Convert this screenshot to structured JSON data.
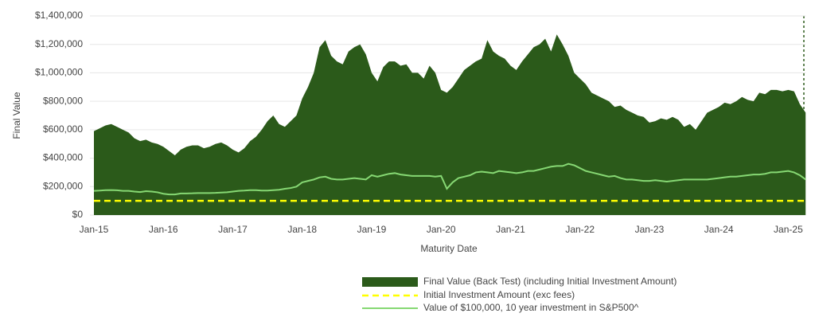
{
  "chart_data": {
    "type": "area",
    "x_label": "Maturity Date",
    "y_label": "Final Value",
    "ylim": [
      0,
      1400000
    ],
    "yticks": [
      {
        "value": 0,
        "label": "$0"
      },
      {
        "value": 200000,
        "label": "$200,000"
      },
      {
        "value": 400000,
        "label": "$400,000"
      },
      {
        "value": 600000,
        "label": "$600,000"
      },
      {
        "value": 800000,
        "label": "$800,000"
      },
      {
        "value": 1000000,
        "label": "$1,000,000"
      },
      {
        "value": 1200000,
        "label": "$1,200,000"
      },
      {
        "value": 1400000,
        "label": "$1,400,000"
      }
    ],
    "grid": true,
    "categories": [
      "Jan-15",
      null,
      null,
      null,
      null,
      null,
      null,
      null,
      null,
      null,
      null,
      null,
      "Jan-16",
      null,
      null,
      null,
      null,
      null,
      null,
      null,
      null,
      null,
      null,
      null,
      "Jan-17",
      null,
      null,
      null,
      null,
      null,
      null,
      null,
      null,
      null,
      null,
      null,
      "Jan-18",
      null,
      null,
      null,
      null,
      null,
      null,
      null,
      null,
      null,
      null,
      null,
      "Jan-19",
      null,
      null,
      null,
      null,
      null,
      null,
      null,
      null,
      null,
      null,
      null,
      "Jan-20",
      null,
      null,
      null,
      null,
      null,
      null,
      null,
      null,
      null,
      null,
      null,
      "Jan-21",
      null,
      null,
      null,
      null,
      null,
      null,
      null,
      null,
      null,
      null,
      null,
      "Jan-22",
      null,
      null,
      null,
      null,
      null,
      null,
      null,
      null,
      null,
      null,
      null,
      "Jan-23",
      null,
      null,
      null,
      null,
      null,
      null,
      null,
      null,
      null,
      null,
      null,
      "Jan-24",
      null,
      null,
      null,
      null,
      null,
      null,
      null,
      null,
      null,
      null,
      null,
      "Jan-25",
      null,
      null,
      null
    ],
    "series": [
      {
        "name": "Final Value (Back Test) (including Initial Investment Amount)",
        "color": "#2b5a1a",
        "style": "area",
        "values": [
          590000,
          610000,
          630000,
          640000,
          620000,
          600000,
          580000,
          540000,
          520000,
          530000,
          510000,
          500000,
          480000,
          450000,
          420000,
          460000,
          480000,
          490000,
          490000,
          470000,
          480000,
          500000,
          510000,
          490000,
          460000,
          440000,
          470000,
          520000,
          550000,
          600000,
          660000,
          700000,
          640000,
          620000,
          660000,
          700000,
          820000,
          900000,
          1000000,
          1180000,
          1230000,
          1120000,
          1080000,
          1060000,
          1150000,
          1180000,
          1200000,
          1130000,
          1000000,
          940000,
          1040000,
          1080000,
          1080000,
          1050000,
          1060000,
          1000000,
          1000000,
          960000,
          1050000,
          1000000,
          880000,
          860000,
          900000,
          960000,
          1020000,
          1050000,
          1080000,
          1100000,
          1230000,
          1150000,
          1120000,
          1100000,
          1050000,
          1020000,
          1080000,
          1130000,
          1180000,
          1200000,
          1240000,
          1150000,
          1270000,
          1200000,
          1120000,
          1000000,
          960000,
          920000,
          860000,
          840000,
          820000,
          800000,
          760000,
          770000,
          740000,
          720000,
          700000,
          690000,
          650000,
          660000,
          680000,
          670000,
          690000,
          670000,
          620000,
          640000,
          600000,
          660000,
          720000,
          740000,
          760000,
          790000,
          780000,
          800000,
          830000,
          810000,
          800000,
          860000,
          850000,
          880000,
          880000,
          870000,
          880000,
          870000,
          780000,
          720000
        ]
      },
      {
        "name": "Initial Investment Amount (exc  fees)",
        "color": "#ffff00",
        "style": "dashed",
        "values": [
          100000,
          100000,
          100000,
          100000,
          100000,
          100000,
          100000,
          100000,
          100000,
          100000,
          100000,
          100000,
          100000,
          100000,
          100000,
          100000,
          100000,
          100000,
          100000,
          100000,
          100000,
          100000,
          100000,
          100000,
          100000,
          100000,
          100000,
          100000,
          100000,
          100000,
          100000,
          100000,
          100000,
          100000,
          100000,
          100000,
          100000,
          100000,
          100000,
          100000,
          100000,
          100000,
          100000,
          100000,
          100000,
          100000,
          100000,
          100000,
          100000,
          100000,
          100000,
          100000,
          100000,
          100000,
          100000,
          100000,
          100000,
          100000,
          100000,
          100000,
          100000,
          100000,
          100000,
          100000,
          100000,
          100000,
          100000,
          100000,
          100000,
          100000,
          100000,
          100000,
          100000,
          100000,
          100000,
          100000,
          100000,
          100000,
          100000,
          100000,
          100000,
          100000,
          100000,
          100000,
          100000,
          100000,
          100000,
          100000,
          100000,
          100000,
          100000,
          100000,
          100000,
          100000,
          100000,
          100000,
          100000,
          100000,
          100000,
          100000,
          100000,
          100000,
          100000,
          100000,
          100000,
          100000,
          100000,
          100000,
          100000,
          100000,
          100000,
          100000,
          100000,
          100000,
          100000,
          100000,
          100000,
          100000,
          100000,
          100000,
          100000,
          100000,
          100000,
          100000
        ]
      },
      {
        "name": "Value of $100,000, 10 year investment in S&P500^",
        "color": "#86d873",
        "style": "line",
        "values": [
          170000,
          172000,
          175000,
          176000,
          174000,
          170000,
          170000,
          165000,
          162000,
          168000,
          165000,
          160000,
          150000,
          145000,
          145000,
          152000,
          152000,
          153000,
          155000,
          155000,
          155000,
          156000,
          158000,
          160000,
          165000,
          170000,
          172000,
          175000,
          175000,
          172000,
          172000,
          175000,
          178000,
          185000,
          190000,
          200000,
          230000,
          240000,
          250000,
          265000,
          270000,
          255000,
          250000,
          250000,
          255000,
          260000,
          255000,
          250000,
          280000,
          270000,
          280000,
          290000,
          295000,
          285000,
          280000,
          275000,
          275000,
          275000,
          275000,
          270000,
          275000,
          185000,
          230000,
          260000,
          270000,
          280000,
          300000,
          305000,
          300000,
          295000,
          310000,
          305000,
          300000,
          295000,
          300000,
          310000,
          310000,
          320000,
          330000,
          340000,
          345000,
          345000,
          360000,
          350000,
          330000,
          310000,
          300000,
          290000,
          280000,
          270000,
          275000,
          260000,
          250000,
          250000,
          245000,
          240000,
          240000,
          245000,
          240000,
          235000,
          240000,
          245000,
          250000,
          250000,
          250000,
          250000,
          250000,
          255000,
          260000,
          265000,
          270000,
          270000,
          275000,
          280000,
          285000,
          285000,
          290000,
          300000,
          300000,
          305000,
          310000,
          300000,
          280000,
          250000
        ]
      }
    ]
  }
}
